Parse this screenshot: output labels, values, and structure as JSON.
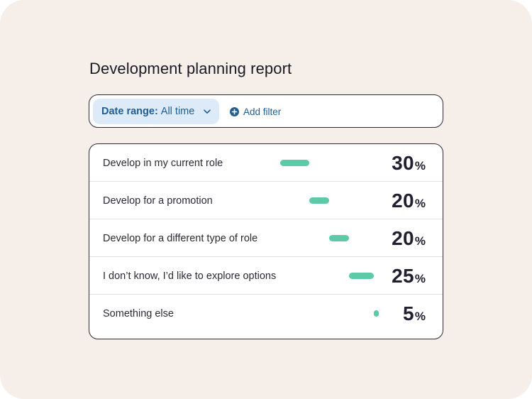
{
  "report": {
    "title": "Development planning report"
  },
  "filters": {
    "date_range_key": "Date range:",
    "date_range_value": "All time",
    "add_filter_label": "Add filter"
  },
  "colors": {
    "background": "#f6efe9",
    "chip": "#dcebf7",
    "link": "#1f5d93",
    "bar": "#5cc9a7",
    "value_text": "#221f30"
  },
  "rows": [
    {
      "label": "Develop in my current role",
      "value": "30",
      "unit": "%",
      "share": 0.3
    },
    {
      "label": "Develop for a promotion",
      "value": "20",
      "unit": "%",
      "share": 0.2
    },
    {
      "label": "Develop for a different type of role",
      "value": "20",
      "unit": "%",
      "share": 0.2
    },
    {
      "label": "I don’t know, I’d like to explore options",
      "value": "25",
      "unit": "%",
      "share": 0.25
    },
    {
      "label": "Something else",
      "value": "5",
      "unit": "%",
      "share": 0.05
    }
  ]
}
